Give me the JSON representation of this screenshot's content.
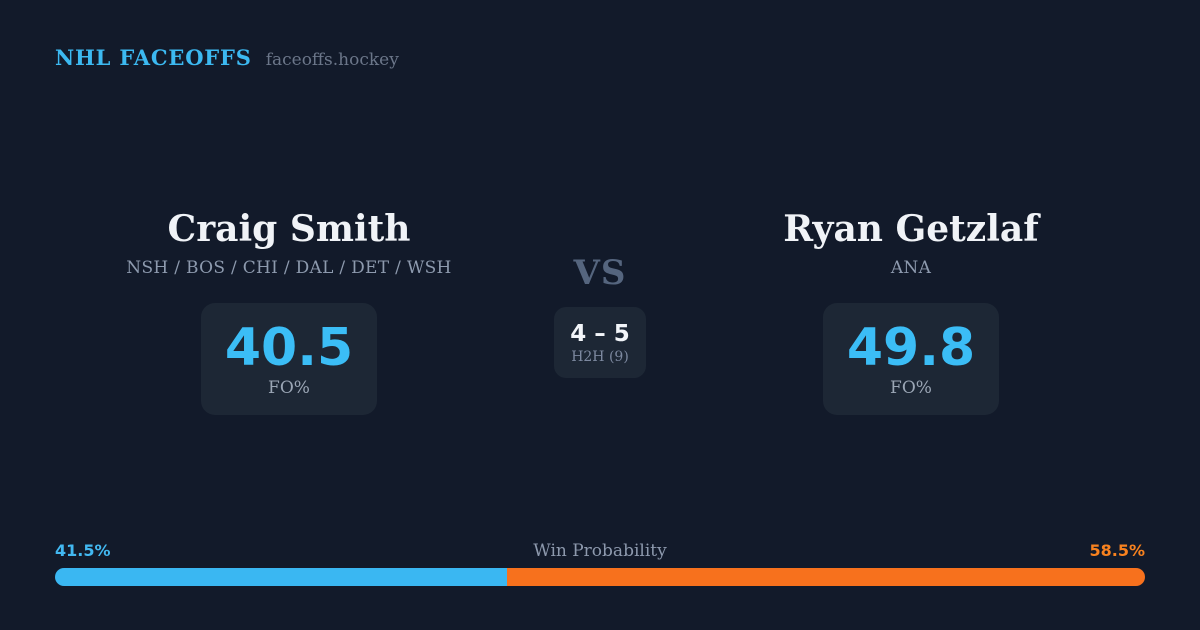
{
  "header": {
    "brand": "NHL FACEOFFS",
    "site": "faceoffs.hockey"
  },
  "matchup": {
    "left_player": {
      "name": "Craig Smith",
      "teams": "NSH / BOS / CHI / DAL / DET / WSH",
      "stat_value": "40.5",
      "stat_label": "FO%"
    },
    "right_player": {
      "name": "Ryan Getzlaf",
      "teams": "ANA",
      "stat_value": "49.8",
      "stat_label": "FO%"
    },
    "vs_label": "VS",
    "h2h": {
      "score": "4 – 5",
      "label": "H2H (9)"
    }
  },
  "win_probability": {
    "title": "Win Probability",
    "left_label": "41.5%",
    "right_label": "58.5%",
    "left_value": 41.5,
    "right_value": 58.5
  },
  "colors": {
    "background": "#121a2a",
    "card_background": "#1d2735",
    "accent_blue": "#3bbdf6",
    "accent_orange": "#f7711d",
    "brand_blue": "#3cb9f1",
    "text_white": "#f0f3f7",
    "text_gray": "#8d9aae"
  }
}
